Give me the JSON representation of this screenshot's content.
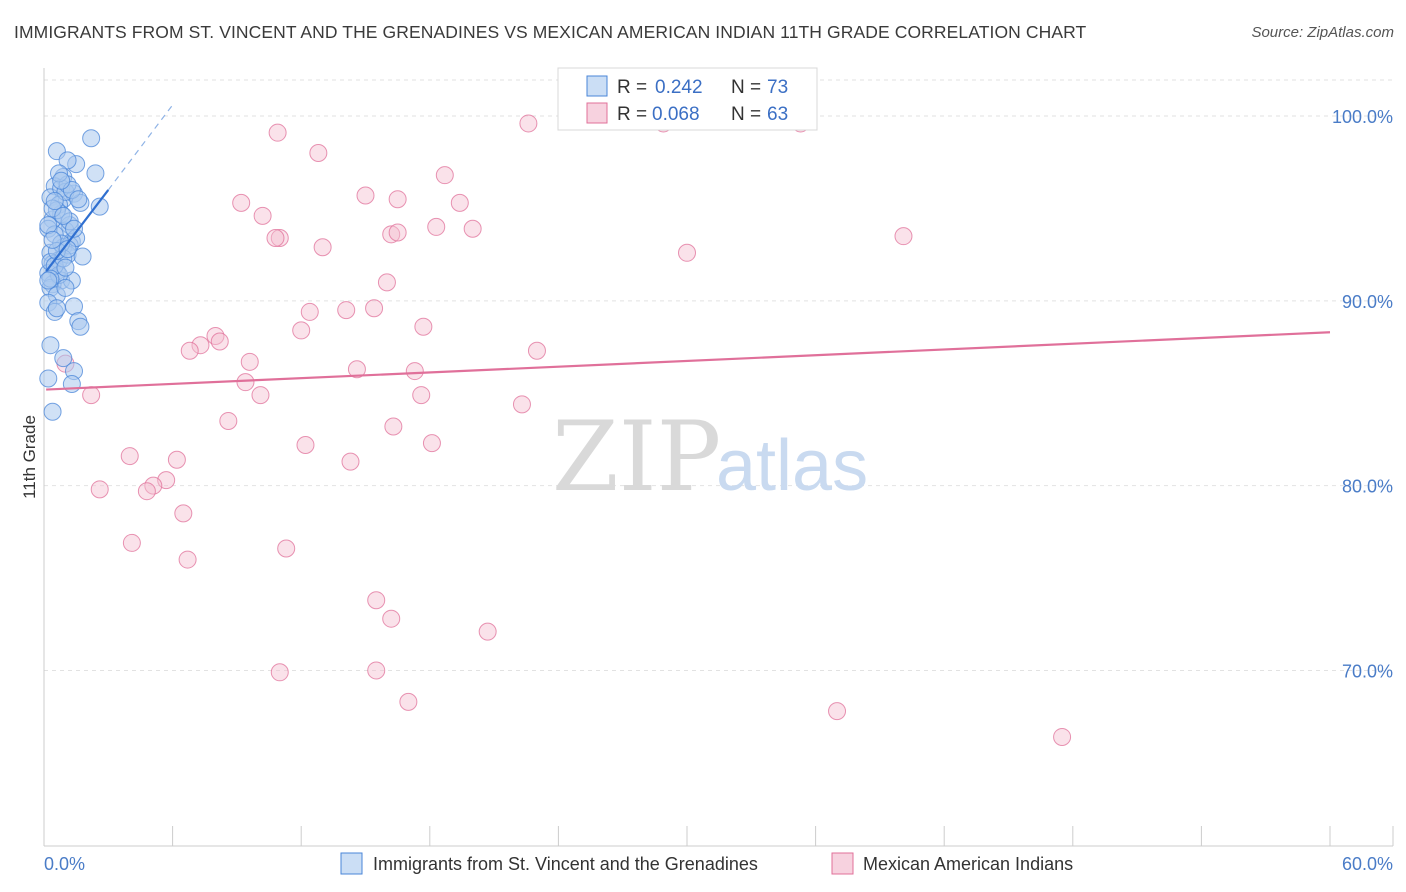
{
  "header": {
    "title": "IMMIGRANTS FROM ST. VINCENT AND THE GRENADINES VS MEXICAN AMERICAN INDIAN 11TH GRADE CORRELATION CHART",
    "source": "Source: ZipAtlas.com"
  },
  "watermark": {
    "zip": "ZIP",
    "atlas": "atlas"
  },
  "chart_data": {
    "type": "scatter",
    "title": "IMMIGRANTS FROM ST. VINCENT AND THE GRENADINES VS MEXICAN AMERICAN INDIAN 11TH GRADE CORRELATION CHART",
    "xlabel": "",
    "ylabel": "11th Grade",
    "xlim": [
      0,
      60
    ],
    "ylim": [
      60.5,
      102.6
    ],
    "x_ticks": [
      0,
      6,
      12,
      18,
      24,
      30,
      36,
      42,
      48,
      54,
      60
    ],
    "x_tick_labels": [
      {
        "value": 0,
        "label": "0.0%"
      },
      {
        "value": 60,
        "label": "60.0%"
      }
    ],
    "y_ticks": [
      {
        "value": 100,
        "label": "100.0%"
      },
      {
        "value": 90,
        "label": "90.0%"
      },
      {
        "value": 80,
        "label": "80.0%"
      },
      {
        "value": 70,
        "label": "70.0%"
      }
    ],
    "legend": [
      {
        "r_label": "R =",
        "r_value": "0.242",
        "n_label": "N =",
        "n_value": "73"
      },
      {
        "r_label": "R =",
        "r_value": "0.068",
        "n_label": "N =",
        "n_value": "63"
      }
    ],
    "series": [
      {
        "name": "Immigrants from St. Vincent and the Grenadines",
        "color": "#4a86d8",
        "fill": "#a9c8ee",
        "trend": {
          "x": [
            0.1,
            3.0
          ],
          "y": [
            91.6,
            96.0
          ]
        },
        "trend_dashed": {
          "x": [
            3.0,
            6.0
          ],
          "y": [
            96.0,
            100.6
          ]
        },
        "points": [
          [
            2.2,
            98.8
          ],
          [
            0.6,
            98.1
          ],
          [
            1.5,
            97.4
          ],
          [
            2.4,
            96.9
          ],
          [
            0.9,
            96.7
          ],
          [
            1.1,
            97.6
          ],
          [
            0.5,
            96.2
          ],
          [
            0.9,
            95.5
          ],
          [
            1.4,
            95.8
          ],
          [
            0.3,
            95.6
          ],
          [
            0.7,
            95.2
          ],
          [
            1.7,
            95.3
          ],
          [
            2.6,
            95.1
          ],
          [
            0.4,
            94.4
          ],
          [
            0.8,
            94.7
          ],
          [
            1.2,
            94.1
          ],
          [
            1.0,
            93.8
          ],
          [
            0.2,
            93.9
          ],
          [
            0.5,
            93.6
          ],
          [
            1.3,
            93.2
          ],
          [
            0.9,
            92.9
          ],
          [
            0.3,
            92.6
          ],
          [
            0.7,
            92.2
          ],
          [
            1.1,
            92.5
          ],
          [
            0.4,
            92.0
          ],
          [
            1.8,
            92.4
          ],
          [
            0.6,
            91.6
          ],
          [
            0.2,
            91.5
          ],
          [
            0.8,
            91.1
          ],
          [
            0.4,
            90.9
          ],
          [
            1.3,
            91.1
          ],
          [
            0.3,
            90.7
          ],
          [
            0.6,
            90.3
          ],
          [
            0.2,
            89.9
          ],
          [
            1.4,
            89.7
          ],
          [
            0.5,
            89.4
          ],
          [
            1.6,
            88.9
          ],
          [
            1.7,
            88.6
          ],
          [
            0.3,
            87.6
          ],
          [
            0.9,
            86.9
          ],
          [
            1.4,
            86.2
          ],
          [
            0.2,
            85.8
          ],
          [
            1.3,
            85.5
          ],
          [
            0.4,
            84.0
          ],
          [
            0.8,
            96.1
          ],
          [
            1.0,
            95.9
          ],
          [
            0.6,
            94.9
          ],
          [
            1.2,
            93.0
          ],
          [
            0.3,
            92.1
          ],
          [
            0.7,
            91.4
          ],
          [
            0.5,
            91.9
          ],
          [
            0.9,
            92.3
          ],
          [
            1.5,
            93.4
          ],
          [
            0.4,
            95.0
          ],
          [
            1.1,
            96.3
          ],
          [
            0.2,
            94.1
          ],
          [
            0.8,
            93.1
          ],
          [
            0.6,
            92.7
          ],
          [
            0.3,
            91.2
          ],
          [
            1.0,
            91.8
          ],
          [
            1.3,
            96.0
          ],
          [
            0.7,
            96.9
          ],
          [
            1.2,
            94.3
          ],
          [
            1.6,
            95.5
          ],
          [
            0.4,
            93.3
          ],
          [
            0.9,
            94.6
          ],
          [
            0.5,
            95.4
          ],
          [
            1.0,
            90.7
          ],
          [
            0.2,
            91.1
          ],
          [
            0.6,
            89.6
          ],
          [
            1.1,
            92.8
          ],
          [
            0.8,
            96.5
          ],
          [
            1.4,
            93.9
          ]
        ]
      },
      {
        "name": "Mexican American Indians",
        "color": "#e0709a",
        "fill": "#f4bfd1",
        "trend": {
          "x": [
            0.1,
            60.0
          ],
          "y": [
            85.2,
            88.3
          ]
        },
        "points": [
          [
            22.6,
            99.6
          ],
          [
            28.9,
            99.6
          ],
          [
            10.9,
            99.1
          ],
          [
            35.3,
            99.6
          ],
          [
            10.2,
            94.6
          ],
          [
            12.8,
            98.0
          ],
          [
            15.0,
            95.7
          ],
          [
            9.2,
            95.3
          ],
          [
            19.4,
            95.3
          ],
          [
            16.5,
            95.5
          ],
          [
            11.0,
            93.4
          ],
          [
            18.7,
            96.8
          ],
          [
            16.2,
            93.6
          ],
          [
            16.5,
            93.7
          ],
          [
            20.0,
            93.9
          ],
          [
            40.1,
            93.5
          ],
          [
            13.0,
            92.9
          ],
          [
            10.8,
            93.4
          ],
          [
            18.3,
            94.0
          ],
          [
            30.0,
            92.6
          ],
          [
            16.0,
            91.0
          ],
          [
            15.4,
            89.6
          ],
          [
            14.1,
            89.5
          ],
          [
            12.4,
            89.4
          ],
          [
            17.7,
            88.6
          ],
          [
            12.0,
            88.4
          ],
          [
            8.0,
            88.1
          ],
          [
            7.3,
            87.6
          ],
          [
            8.2,
            87.8
          ],
          [
            6.8,
            87.3
          ],
          [
            9.6,
            86.7
          ],
          [
            14.6,
            86.3
          ],
          [
            17.3,
            86.2
          ],
          [
            23.0,
            87.3
          ],
          [
            9.4,
            85.6
          ],
          [
            10.1,
            84.9
          ],
          [
            17.6,
            84.9
          ],
          [
            22.3,
            84.4
          ],
          [
            16.3,
            83.2
          ],
          [
            8.6,
            83.5
          ],
          [
            4.0,
            81.6
          ],
          [
            12.2,
            82.2
          ],
          [
            18.1,
            82.3
          ],
          [
            6.2,
            81.4
          ],
          [
            14.3,
            81.3
          ],
          [
            5.7,
            80.3
          ],
          [
            5.1,
            80.0
          ],
          [
            4.8,
            79.7
          ],
          [
            2.6,
            79.8
          ],
          [
            2.2,
            84.9
          ],
          [
            1.0,
            86.6
          ],
          [
            6.5,
            78.5
          ],
          [
            6.7,
            76.0
          ],
          [
            4.1,
            76.9
          ],
          [
            11.3,
            76.6
          ],
          [
            15.5,
            73.8
          ],
          [
            16.2,
            72.8
          ],
          [
            20.7,
            72.1
          ],
          [
            15.5,
            70.0
          ],
          [
            11.0,
            69.9
          ],
          [
            17.0,
            68.3
          ],
          [
            37.0,
            67.8
          ],
          [
            47.5,
            66.4
          ]
        ]
      }
    ]
  },
  "bottom_legend": [
    {
      "label": "Immigrants from St. Vincent and the Grenadines"
    },
    {
      "label": "Mexican American Indians"
    }
  ]
}
